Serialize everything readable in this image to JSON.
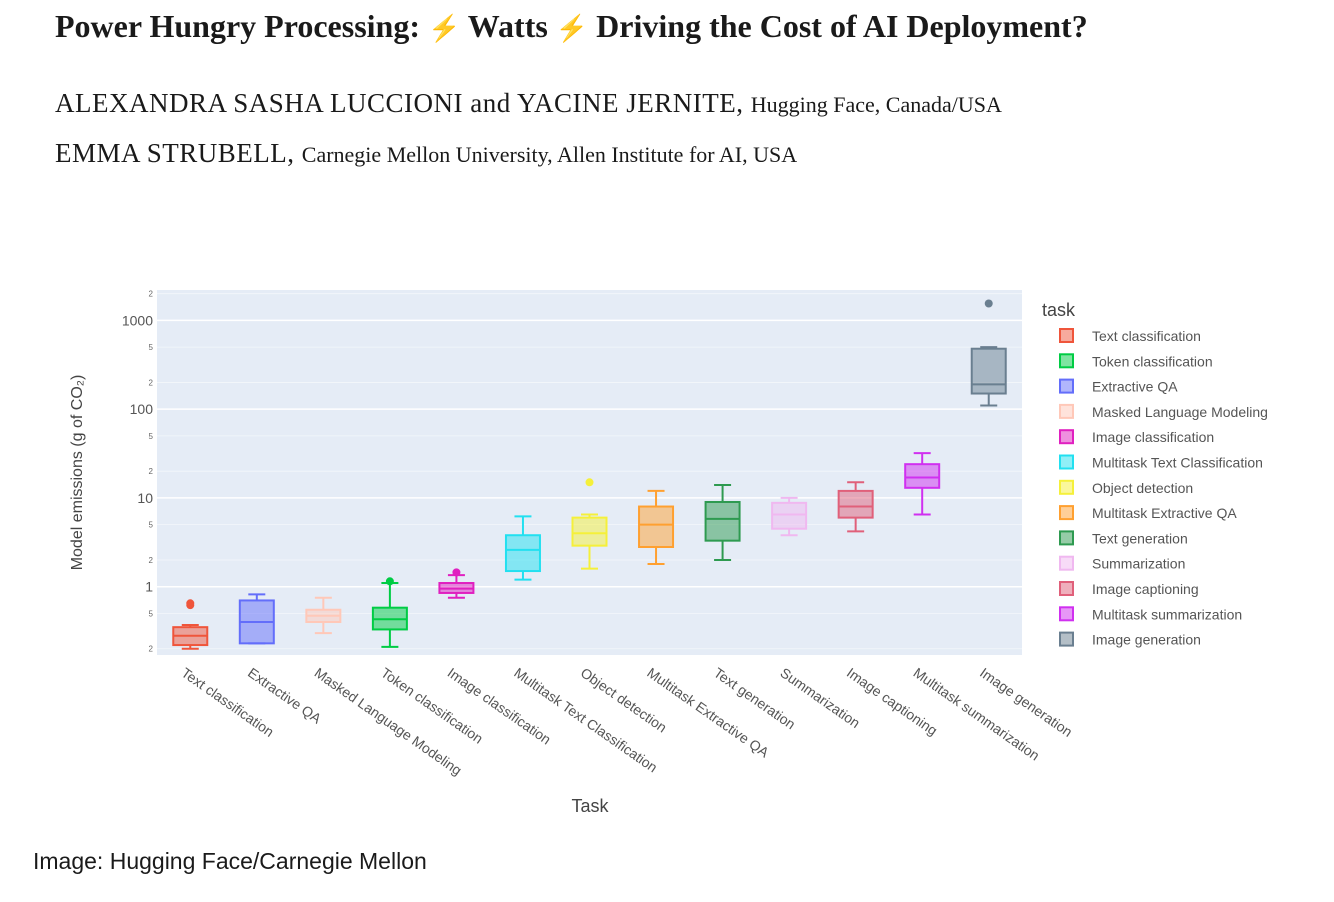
{
  "paper": {
    "title_part1": "Power Hungry Processing:",
    "title_part2": "Watts",
    "title_part3": "Driving the Cost of AI Deployment?",
    "bolt_glyph": "⚡",
    "authors_line1_names": "ALEXANDRA SASHA LUCCIONI and YACINE JERNITE,",
    "authors_line1_affiliation": "Hugging Face, Canada/USA",
    "authors_line2_names": "EMMA STRUBELL,",
    "authors_line2_affiliation": "Carnegie Mellon University, Allen Institute for AI, USA"
  },
  "caption": "Image: Hugging Face/Carnegie Mellon",
  "chart_data": {
    "type": "box",
    "xlabel": "Task",
    "ylabel": "Model emissions (g of CO₂)",
    "yscale": "log",
    "ylim": [
      0.17,
      2200
    ],
    "major_ticks": [
      {
        "value": 1,
        "label": "1"
      },
      {
        "value": 10,
        "label": "10"
      },
      {
        "value": 100,
        "label": "100"
      },
      {
        "value": 1000,
        "label": "1000"
      }
    ],
    "minor_ticks": [
      {
        "value": 0.2,
        "label": "2"
      },
      {
        "value": 0.5,
        "label": "5"
      },
      {
        "value": 2,
        "label": "2"
      },
      {
        "value": 5,
        "label": "5"
      },
      {
        "value": 20,
        "label": "2"
      },
      {
        "value": 50,
        "label": "5"
      },
      {
        "value": 200,
        "label": "2"
      },
      {
        "value": 500,
        "label": "5"
      },
      {
        "value": 2000,
        "label": "2"
      }
    ],
    "grid": true,
    "legend_title": "task",
    "legend_position": "right",
    "categories": [
      "Text classification",
      "Extractive QA",
      "Masked Language Modeling",
      "Token classification",
      "Image classification",
      "Multitask Text Classification",
      "Object detection",
      "Multitask Extractive QA",
      "Text generation",
      "Summarization",
      "Image captioning",
      "Multitask summarization",
      "Image generation"
    ],
    "series": [
      {
        "name": "Text classification",
        "color": "#ef553b",
        "min": 0.2,
        "q1": 0.22,
        "median": 0.28,
        "q3": 0.35,
        "max": 0.37,
        "outliers": [
          0.62,
          0.65
        ]
      },
      {
        "name": "Token classification",
        "color": "#00cc44",
        "min": 0.21,
        "q1": 0.33,
        "median": 0.43,
        "q3": 0.58,
        "max": 1.1,
        "outliers": [
          1.15
        ]
      },
      {
        "name": "Extractive QA",
        "color": "#636efa",
        "min": 0.23,
        "q1": 0.23,
        "median": 0.4,
        "q3": 0.7,
        "max": 0.82,
        "outliers": []
      },
      {
        "name": "Masked Language Modeling",
        "color": "#ffc8b8",
        "min": 0.3,
        "q1": 0.4,
        "median": 0.47,
        "q3": 0.55,
        "max": 0.75,
        "outliers": []
      },
      {
        "name": "Image classification",
        "color": "#e020c0",
        "min": 0.75,
        "q1": 0.85,
        "median": 0.95,
        "q3": 1.1,
        "max": 1.35,
        "outliers": [
          1.45
        ]
      },
      {
        "name": "Multitask Text Classification",
        "color": "#22e0f0",
        "min": 1.2,
        "q1": 1.5,
        "median": 2.6,
        "q3": 3.8,
        "max": 6.2,
        "outliers": []
      },
      {
        "name": "Object detection",
        "color": "#f5f03a",
        "min": 1.6,
        "q1": 2.9,
        "median": 4.0,
        "q3": 6.0,
        "max": 6.5,
        "outliers": [
          15.0
        ]
      },
      {
        "name": "Multitask Extractive QA",
        "color": "#ffa030",
        "min": 1.8,
        "q1": 2.8,
        "median": 5.0,
        "q3": 8.0,
        "max": 12.0,
        "outliers": []
      },
      {
        "name": "Text generation",
        "color": "#2e9a50",
        "min": 2.0,
        "q1": 3.3,
        "median": 5.8,
        "q3": 9.0,
        "max": 14.0,
        "outliers": []
      },
      {
        "name": "Summarization",
        "color": "#f0b8f0",
        "min": 3.8,
        "q1": 4.5,
        "median": 6.5,
        "q3": 8.8,
        "max": 10.0,
        "outliers": []
      },
      {
        "name": "Image captioning",
        "color": "#e0607a",
        "min": 4.2,
        "q1": 6.0,
        "median": 8.0,
        "q3": 12.0,
        "max": 15.0,
        "outliers": []
      },
      {
        "name": "Multitask summarization",
        "color": "#d030f0",
        "min": 6.5,
        "q1": 13.0,
        "median": 17.0,
        "q3": 24.0,
        "max": 32.0,
        "outliers": []
      },
      {
        "name": "Image generation",
        "color": "#6a7f90",
        "min": 110,
        "q1": 150,
        "median": 190,
        "q3": 480,
        "max": 500,
        "outliers": [
          1550
        ]
      }
    ]
  }
}
